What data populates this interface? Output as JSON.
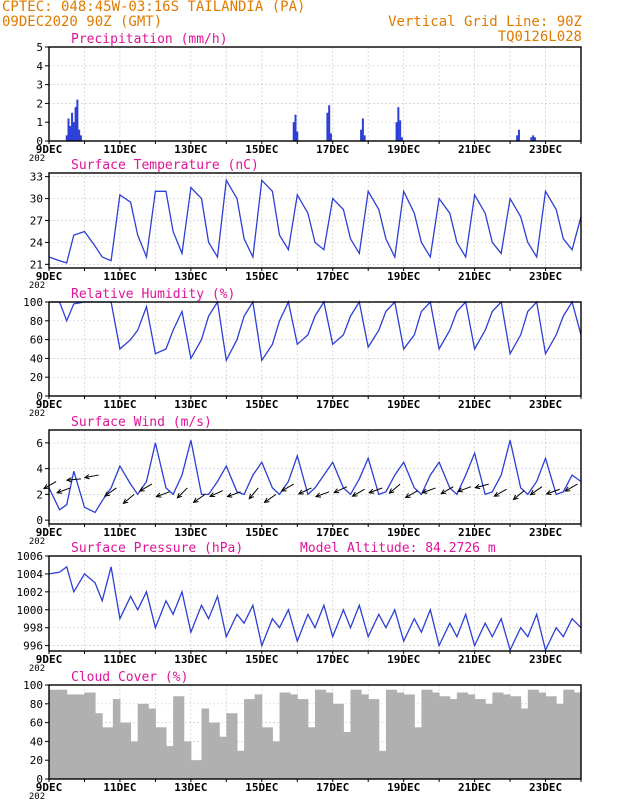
{
  "header": {
    "title": "CPTEC:  048:45W-03:16S  TAILANDIA (PA)",
    "date": "09DEC2020 90Z (GMT)",
    "grid_note": "Vertical Grid Line: 90Z",
    "code": "TQ0126L028"
  },
  "colors": {
    "header": "#e07a00",
    "panel_title": "#e0139a",
    "line": "#2c3fd6",
    "cloud": "#b0b0b0"
  },
  "x_axis": {
    "days": [
      9,
      24
    ],
    "tick_labels": [
      "9DEC",
      "11DEC",
      "13DEC",
      "15DEC",
      "17DEC",
      "19DEC",
      "21DEC",
      "23DEC"
    ],
    "tick_days": [
      9,
      11,
      13,
      15,
      17,
      19,
      21,
      23
    ],
    "year_stub": "202"
  },
  "chart_data": [
    {
      "type": "bar",
      "name": "precipitation",
      "title": "Precipitation (mm/h)",
      "ylim": [
        0,
        5
      ],
      "yticks": [
        0,
        1,
        2,
        3,
        4,
        5
      ],
      "x": [
        9.5,
        9.55,
        9.6,
        9.65,
        9.7,
        9.75,
        9.8,
        9.85,
        9.9,
        15.9,
        15.95,
        16.0,
        16.85,
        16.9,
        16.95,
        17.8,
        17.85,
        17.9,
        18.8,
        18.85,
        18.9,
        18.95,
        22.2,
        22.25,
        22.6,
        22.65,
        22.7
      ],
      "values": [
        0.3,
        1.2,
        0.8,
        1.5,
        1.0,
        1.8,
        2.2,
        0.6,
        0.3,
        1.0,
        1.4,
        0.5,
        1.5,
        1.9,
        0.4,
        0.6,
        1.2,
        0.3,
        1.0,
        1.8,
        1.1,
        0.2,
        0.3,
        0.6,
        0.2,
        0.3,
        0.2
      ]
    },
    {
      "type": "line",
      "name": "temperature",
      "title": "Surface Temperature (nC)",
      "ylim": [
        20.5,
        33.5
      ],
      "yticks": [
        21,
        24,
        27,
        30,
        33
      ],
      "x": [
        9.0,
        9.3,
        9.5,
        9.7,
        10.0,
        10.3,
        10.5,
        10.75,
        11.0,
        11.3,
        11.5,
        11.75,
        12.0,
        12.3,
        12.5,
        12.75,
        13.0,
        13.3,
        13.5,
        13.75,
        14.0,
        14.3,
        14.5,
        14.75,
        15.0,
        15.3,
        15.5,
        15.75,
        16.0,
        16.3,
        16.5,
        16.75,
        17.0,
        17.3,
        17.5,
        17.75,
        18.0,
        18.3,
        18.5,
        18.75,
        19.0,
        19.3,
        19.5,
        19.75,
        20.0,
        20.3,
        20.5,
        20.75,
        21.0,
        21.3,
        21.5,
        21.75,
        22.0,
        22.3,
        22.5,
        22.75,
        23.0,
        23.3,
        23.5,
        23.75,
        24.0
      ],
      "values": [
        22,
        21.5,
        21.2,
        25,
        25.5,
        23.5,
        22,
        21.5,
        30.5,
        29.5,
        25,
        22,
        31,
        31,
        25.5,
        22.5,
        31.5,
        30,
        24,
        22,
        32.5,
        30,
        24.5,
        22,
        32.5,
        31,
        25,
        23,
        30.5,
        28,
        24,
        23,
        30,
        28.5,
        24.5,
        22.5,
        31,
        28.5,
        24.5,
        22,
        31,
        28,
        24,
        22,
        30,
        28,
        24,
        22,
        30.5,
        28,
        24,
        22.5,
        30,
        27.5,
        24,
        22,
        31,
        28.5,
        24.5,
        23,
        27.5
      ]
    },
    {
      "type": "line",
      "name": "humidity",
      "title": "Relative Humidity (%)",
      "ylim": [
        0,
        100
      ],
      "yticks": [
        0,
        20,
        40,
        60,
        80,
        100
      ],
      "x": [
        9.0,
        9.3,
        9.5,
        9.7,
        10.0,
        10.3,
        10.5,
        10.75,
        11.0,
        11.3,
        11.5,
        11.75,
        12.0,
        12.3,
        12.5,
        12.75,
        13.0,
        13.3,
        13.5,
        13.75,
        14.0,
        14.3,
        14.5,
        14.75,
        15.0,
        15.3,
        15.5,
        15.75,
        16.0,
        16.3,
        16.5,
        16.75,
        17.0,
        17.3,
        17.5,
        17.75,
        18.0,
        18.3,
        18.5,
        18.75,
        19.0,
        19.3,
        19.5,
        19.75,
        20.0,
        20.3,
        20.5,
        20.75,
        21.0,
        21.3,
        21.5,
        21.75,
        22.0,
        22.3,
        22.5,
        22.75,
        23.0,
        23.3,
        23.5,
        23.75,
        24.0
      ],
      "values": [
        100,
        100,
        80,
        98,
        100,
        100,
        100,
        100,
        50,
        60,
        70,
        95,
        45,
        50,
        70,
        90,
        40,
        60,
        85,
        100,
        38,
        60,
        85,
        100,
        38,
        55,
        80,
        100,
        55,
        65,
        85,
        100,
        55,
        65,
        85,
        100,
        52,
        70,
        90,
        100,
        50,
        65,
        90,
        100,
        50,
        70,
        90,
        100,
        50,
        70,
        90,
        100,
        45,
        65,
        90,
        100,
        45,
        65,
        85,
        100,
        65
      ]
    },
    {
      "type": "line",
      "name": "wind",
      "title": "Surface Wind (m/s)",
      "ylim": [
        -0.3,
        7
      ],
      "yticks": [
        0,
        2,
        4,
        6
      ],
      "x": [
        9.0,
        9.3,
        9.5,
        9.7,
        10.0,
        10.3,
        10.5,
        10.75,
        11.0,
        11.3,
        11.5,
        11.75,
        12.0,
        12.3,
        12.5,
        12.75,
        13.0,
        13.3,
        13.5,
        13.75,
        14.0,
        14.3,
        14.5,
        14.75,
        15.0,
        15.3,
        15.5,
        15.75,
        16.0,
        16.3,
        16.5,
        16.75,
        17.0,
        17.3,
        17.5,
        17.75,
        18.0,
        18.3,
        18.5,
        18.75,
        19.0,
        19.3,
        19.5,
        19.75,
        20.0,
        20.3,
        20.5,
        20.75,
        21.0,
        21.3,
        21.5,
        21.75,
        22.0,
        22.3,
        22.5,
        22.75,
        23.0,
        23.3,
        23.5,
        23.75,
        24.0
      ],
      "values": [
        2.5,
        0.8,
        1.2,
        3.8,
        1.0,
        0.6,
        1.5,
        2.5,
        4.2,
        2.8,
        2.0,
        3.0,
        6.0,
        2.5,
        2.0,
        3.5,
        6.2,
        2.0,
        2.0,
        3.0,
        4.2,
        2.2,
        2.0,
        3.5,
        4.5,
        2.5,
        2.0,
        3.0,
        5.0,
        2.0,
        2.5,
        3.5,
        4.5,
        2.5,
        2.0,
        3.2,
        4.8,
        2.0,
        2.2,
        3.5,
        4.5,
        2.5,
        2.0,
        3.5,
        4.5,
        2.5,
        2.0,
        3.5,
        5.2,
        2.0,
        2.2,
        3.5,
        6.2,
        2.5,
        2.0,
        3.0,
        4.8,
        2.0,
        2.2,
        3.5,
        3.0
      ],
      "arrow_x": [
        9.2,
        9.6,
        9.9,
        10.4,
        10.9,
        11.4,
        11.9,
        12.4,
        12.9,
        13.4,
        13.9,
        14.4,
        14.9,
        15.4,
        15.9,
        16.4,
        16.9,
        17.4,
        17.9,
        18.4,
        18.9,
        19.4,
        19.9,
        20.4,
        20.9,
        21.4,
        21.9,
        22.4,
        22.9,
        23.4,
        23.9
      ],
      "arrow_y": [
        3.0,
        2.5,
        3.2,
        3.5,
        2.5,
        2.0,
        2.8,
        2.2,
        2.5,
        2.0,
        2.3,
        2.2,
        2.5,
        2.0,
        2.8,
        2.5,
        2.2,
        2.6,
        2.4,
        2.5,
        2.8,
        2.3,
        2.5,
        2.6,
        2.6,
        2.8,
        2.4,
        2.3,
        2.6,
        2.4,
        2.8
      ],
      "arrow_dir": [
        210,
        200,
        185,
        190,
        215,
        220,
        210,
        200,
        225,
        215,
        205,
        200,
        230,
        215,
        210,
        205,
        200,
        205,
        210,
        200,
        220,
        210,
        200,
        210,
        200,
        195,
        210,
        220,
        215,
        200,
        210
      ]
    },
    {
      "type": "line",
      "name": "pressure",
      "title": "Surface Pressure (hPa)",
      "model_altitude": "Model Altitude: 84.2726 m",
      "ylim": [
        995.4,
        1006
      ],
      "yticks": [
        996,
        998,
        1000,
        1002,
        1004,
        1006
      ],
      "x": [
        9.0,
        9.3,
        9.5,
        9.7,
        10.0,
        10.3,
        10.5,
        10.75,
        11.0,
        11.3,
        11.5,
        11.75,
        12.0,
        12.3,
        12.5,
        12.75,
        13.0,
        13.3,
        13.5,
        13.75,
        14.0,
        14.3,
        14.5,
        14.75,
        15.0,
        15.3,
        15.5,
        15.75,
        16.0,
        16.3,
        16.5,
        16.75,
        17.0,
        17.3,
        17.5,
        17.75,
        18.0,
        18.3,
        18.5,
        18.75,
        19.0,
        19.3,
        19.5,
        19.75,
        20.0,
        20.3,
        20.5,
        20.75,
        21.0,
        21.3,
        21.5,
        21.75,
        22.0,
        22.3,
        22.5,
        22.75,
        23.0,
        23.3,
        23.5,
        23.75,
        24.0
      ],
      "values": [
        1004,
        1004.2,
        1004.8,
        1002,
        1004,
        1003,
        1001,
        1004.8,
        999,
        1001.5,
        1000,
        1002,
        998,
        1001,
        999.5,
        1002,
        997.5,
        1000.5,
        999,
        1001.5,
        997,
        999.5,
        998.5,
        1000.5,
        996,
        999,
        998,
        1000,
        996.5,
        999.5,
        998,
        1000.5,
        997,
        1000,
        998,
        1000.5,
        997,
        999.5,
        998,
        1000,
        996.5,
        999,
        997.5,
        1000,
        996,
        998.5,
        997,
        999.5,
        996,
        998.5,
        997,
        999,
        995.5,
        998,
        997,
        999.5,
        995.5,
        998,
        997,
        999,
        998
      ]
    },
    {
      "type": "area",
      "name": "cloud",
      "title": "Cloud Cover (%)",
      "ylim": [
        0,
        100
      ],
      "yticks": [
        0,
        20,
        40,
        60,
        80,
        100
      ],
      "x": [
        9.0,
        9.5,
        10.0,
        10.3,
        10.5,
        10.8,
        11.0,
        11.3,
        11.5,
        11.8,
        12.0,
        12.3,
        12.5,
        12.8,
        13.0,
        13.3,
        13.5,
        13.8,
        14.0,
        14.3,
        14.5,
        14.8,
        15.0,
        15.3,
        15.5,
        15.8,
        16.0,
        16.3,
        16.5,
        16.8,
        17.0,
        17.3,
        17.5,
        17.8,
        18.0,
        18.3,
        18.5,
        18.8,
        19.0,
        19.3,
        19.5,
        19.8,
        20.0,
        20.3,
        20.5,
        20.8,
        21.0,
        21.3,
        21.5,
        21.8,
        22.0,
        22.3,
        22.5,
        22.8,
        23.0,
        23.3,
        23.5,
        23.8,
        24.0
      ],
      "values": [
        95,
        90,
        92,
        70,
        55,
        85,
        60,
        40,
        80,
        75,
        55,
        35,
        88,
        40,
        20,
        75,
        60,
        45,
        70,
        30,
        85,
        90,
        55,
        40,
        92,
        90,
        85,
        55,
        95,
        92,
        80,
        50,
        95,
        90,
        85,
        30,
        95,
        92,
        90,
        55,
        95,
        92,
        88,
        85,
        92,
        90,
        85,
        80,
        92,
        90,
        88,
        75,
        95,
        92,
        88,
        80,
        95,
        92,
        90
      ]
    }
  ]
}
